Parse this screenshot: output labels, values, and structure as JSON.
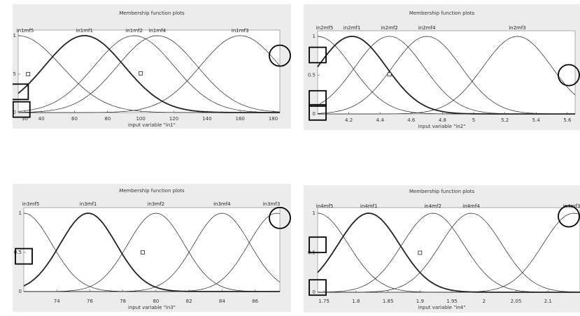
{
  "chart_data": [
    {
      "type": "line",
      "title": "Membership function plots",
      "xlabel": "input variable \"in1\"",
      "xlim": [
        26,
        184
      ],
      "ylim": [
        0,
        1
      ],
      "xticks": [
        "30",
        "40",
        "60",
        "80",
        "100",
        "120",
        "140",
        "160",
        "180"
      ],
      "xtick_values": [
        30,
        40,
        60,
        80,
        100,
        120,
        140,
        160,
        180
      ],
      "yticks": [
        "0",
        "0.5",
        "1"
      ],
      "series": [
        {
          "name": "in1mf5",
          "type": "gauss",
          "center": 26,
          "sigma": 26,
          "bold": false
        },
        {
          "name": "in1mf1",
          "type": "gauss",
          "center": 66,
          "sigma": 24,
          "bold": true
        },
        {
          "name": "in1mf2",
          "type": "gauss",
          "center": 96,
          "sigma": 24,
          "bold": false
        },
        {
          "name": "in1mf4",
          "type": "gauss",
          "center": 110,
          "sigma": 24,
          "bold": false
        },
        {
          "name": "in1mf3",
          "type": "gauss",
          "center": 160,
          "sigma": 24,
          "bold": false
        }
      ],
      "labels_shown": [
        "in1mf5",
        "in1mf1",
        "in1mf2",
        "in1mf4",
        "in1mf3"
      ]
    },
    {
      "type": "line",
      "title": "Membership function plots",
      "xlabel": "input variable \"in2\"",
      "xlim": [
        4.0,
        5.65
      ],
      "ylim": [
        0,
        1
      ],
      "xticks": [
        "4.2",
        "4.4",
        "4.6",
        "4.8",
        "5",
        "5.2",
        "5.4",
        "5.6"
      ],
      "xtick_values": [
        4.2,
        4.4,
        4.6,
        4.8,
        5.0,
        5.2,
        5.4,
        5.6
      ],
      "yticks": [
        "0",
        "0.5",
        "1"
      ],
      "series": [
        {
          "name": "in2mf5",
          "type": "gauss",
          "center": 4.0,
          "sigma": 0.22,
          "bold": false
        },
        {
          "name": "in2mf1",
          "type": "gauss",
          "center": 4.22,
          "sigma": 0.22,
          "bold": true
        },
        {
          "name": "in2mf2",
          "type": "gauss",
          "center": 4.46,
          "sigma": 0.22,
          "bold": false
        },
        {
          "name": "in2mf4",
          "type": "gauss",
          "center": 4.7,
          "sigma": 0.22,
          "bold": false
        },
        {
          "name": "in2mf3",
          "type": "gauss",
          "center": 5.28,
          "sigma": 0.22,
          "bold": false
        }
      ],
      "labels_shown": [
        "in2mf5",
        "in2mf1",
        "in2mf2",
        "in2mf4",
        "in2mf3"
      ]
    },
    {
      "type": "line",
      "title": "Membership function plots",
      "xlabel": "input variable \"in3\"",
      "xlim": [
        72,
        87.5
      ],
      "ylim": [
        0,
        1
      ],
      "xticks": [
        "74",
        "76",
        "78",
        "80",
        "82",
        "84",
        "86"
      ],
      "xtick_values": [
        74,
        76,
        78,
        80,
        82,
        84,
        86
      ],
      "yticks": [
        "0",
        "0.5",
        "1"
      ],
      "series": [
        {
          "name": "in3mf5",
          "type": "gauss",
          "center": 72,
          "sigma": 1.7,
          "bold": false
        },
        {
          "name": "in3mf1",
          "type": "gauss",
          "center": 75.9,
          "sigma": 1.7,
          "bold": true
        },
        {
          "name": "in3mf2",
          "type": "gauss",
          "center": 80,
          "sigma": 1.7,
          "bold": false
        },
        {
          "name": "in3mf4",
          "type": "gauss",
          "center": 84,
          "sigma": 1.7,
          "bold": false
        },
        {
          "name": "in3mf3",
          "type": "gauss",
          "center": 87.3,
          "sigma": 1.7,
          "bold": false
        }
      ],
      "labels_shown": [
        "in3mf5",
        "in3mf1",
        "in3mf2",
        "in3mf4",
        "in3mf3"
      ]
    },
    {
      "type": "line",
      "title": "Membership function plots",
      "xlabel": "input variable \"in4\"",
      "xlim": [
        1.74,
        2.15
      ],
      "ylim": [
        0,
        1
      ],
      "xticks": [
        "1.75",
        "1.8",
        "1.85",
        "1.9",
        "1.95",
        "2",
        "2.05",
        "2.1"
      ],
      "xtick_values": [
        1.75,
        1.8,
        1.85,
        1.9,
        1.95,
        2.0,
        2.05,
        2.1
      ],
      "yticks": [
        "0",
        "0.5",
        "1"
      ],
      "series": [
        {
          "name": "in4mf5",
          "type": "gauss",
          "center": 1.74,
          "sigma": 0.048,
          "bold": false
        },
        {
          "name": "in4mf1",
          "type": "gauss",
          "center": 1.82,
          "sigma": 0.048,
          "bold": true
        },
        {
          "name": "in4mf2",
          "type": "gauss",
          "center": 1.92,
          "sigma": 0.048,
          "bold": false
        },
        {
          "name": "in4mf4",
          "type": "gauss",
          "center": 1.98,
          "sigma": 0.048,
          "bold": false
        },
        {
          "name": "in4mf3",
          "type": "gauss",
          "center": 2.14,
          "sigma": 0.048,
          "bold": false
        }
      ],
      "labels_shown": [
        "in4mf5",
        "in4mf1",
        "in4mf2",
        "in4mf4",
        "in4mf3"
      ]
    }
  ],
  "colors": {
    "panel_bg": "#ececec",
    "plot_bg": "#ffffff",
    "line": "#222222",
    "annotation": "#000000"
  },
  "annotations": [
    {
      "chart": 0,
      "squares": [
        [
          27,
          0.27
        ],
        [
          28,
          0.04
        ]
      ],
      "circles": [
        [
          184,
          0.74
        ]
      ],
      "small_squares": [
        [
          32,
          0.5
        ],
        [
          100,
          0.51
        ]
      ]
    },
    {
      "chart": 1,
      "squares": [
        [
          4.0,
          0.76
        ],
        [
          4.0,
          0.2
        ],
        [
          4.0,
          0.02
        ]
      ],
      "circles": [
        [
          5.65,
          0.5
        ]
      ],
      "small_squares": [
        [
          4.46,
          0.51
        ]
      ]
    },
    {
      "chart": 2,
      "squares": [
        [
          72,
          0.45
        ]
      ],
      "circles": [
        [
          87.5,
          0.94
        ]
      ],
      "small_squares": [
        [
          79.2,
          0.5
        ]
      ]
    },
    {
      "chart": 3,
      "squares": [
        [
          1.74,
          0.6
        ],
        [
          1.74,
          0.06
        ]
      ],
      "circles": [
        [
          2.15,
          0.96
        ]
      ],
      "small_squares": [
        [
          1.9,
          0.5
        ]
      ]
    }
  ]
}
